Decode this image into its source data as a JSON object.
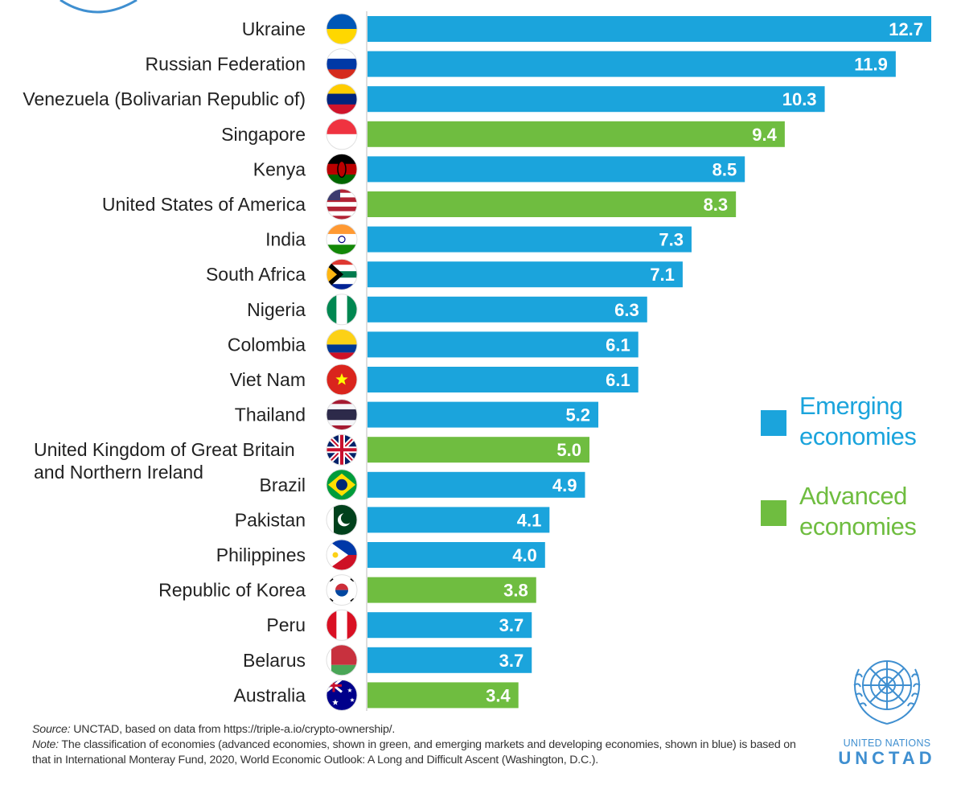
{
  "colors": {
    "emerging": "#1ba4dc",
    "advanced": "#6fbd40",
    "label_text": "#222222",
    "value_text": "#ffffff",
    "un_blue": "#3f8fd0"
  },
  "legend": [
    {
      "label": "Emerging economies",
      "group": "emerging"
    },
    {
      "label": "Advanced economies",
      "group": "advanced"
    }
  ],
  "chart_data": {
    "type": "bar",
    "orientation": "horizontal",
    "unit": "percent of population owning digital currency",
    "xlim": [
      0,
      13
    ],
    "grid": false,
    "legend_position": "right",
    "categories": [
      "Ukraine",
      "Russian Federation",
      "Venezuela (Bolivarian Republic of)",
      "Singapore",
      "Kenya",
      "United States of America",
      "India",
      "South Africa",
      "Nigeria",
      "Colombia",
      "Viet Nam",
      "Thailand",
      "United Kingdom of Great Britain and Northern Ireland",
      "Brazil",
      "Pakistan",
      "Philippines",
      "Republic of Korea",
      "Peru",
      "Belarus",
      "Australia"
    ],
    "labels": [
      [
        "Ukraine"
      ],
      [
        "Russian Federation"
      ],
      [
        "Venezuela (Bolivarian Republic of)"
      ],
      [
        "Singapore"
      ],
      [
        "Kenya"
      ],
      [
        "United States of America"
      ],
      [
        "India"
      ],
      [
        "South Africa"
      ],
      [
        "Nigeria"
      ],
      [
        "Colombia"
      ],
      [
        "Viet Nam"
      ],
      [
        "Thailand"
      ],
      [
        "United Kingdom of Great Britain",
        "and Northern Ireland"
      ],
      [
        "Brazil"
      ],
      [
        "Pakistan"
      ],
      [
        "Philippines"
      ],
      [
        "Republic of Korea"
      ],
      [
        "Peru"
      ],
      [
        "Belarus"
      ],
      [
        "Australia"
      ]
    ],
    "values": [
      12.7,
      11.9,
      10.3,
      9.4,
      8.5,
      8.3,
      7.3,
      7.1,
      6.3,
      6.1,
      6.1,
      5.2,
      5.0,
      4.9,
      4.1,
      4.0,
      3.8,
      3.7,
      3.7,
      3.4
    ],
    "value_labels": [
      "12.7",
      "11.9",
      "10.3",
      "9.4",
      "8.5",
      "8.3",
      "7.3",
      "7.1",
      "6.3",
      "6.1",
      "6.1",
      "5.2",
      "5.0",
      "4.9",
      "4.1",
      "4.0",
      "3.8",
      "3.7",
      "3.7",
      "3.4"
    ],
    "groups": [
      "emerging",
      "emerging",
      "emerging",
      "advanced",
      "emerging",
      "advanced",
      "emerging",
      "emerging",
      "emerging",
      "emerging",
      "emerging",
      "emerging",
      "advanced",
      "emerging",
      "emerging",
      "emerging",
      "advanced",
      "emerging",
      "emerging",
      "advanced"
    ],
    "flags": [
      "ukraine-flag",
      "russia-flag",
      "venezuela-flag",
      "singapore-flag",
      "kenya-flag",
      "usa-flag",
      "india-flag",
      "south-africa-flag",
      "nigeria-flag",
      "colombia-flag",
      "vietnam-flag",
      "thailand-flag",
      "uk-flag",
      "brazil-flag",
      "pakistan-flag",
      "philippines-flag",
      "korea-flag",
      "peru-flag",
      "belarus-flag",
      "australia-flag"
    ]
  },
  "footnotes": {
    "source_lead": "Source:",
    "source_text": " UNCTAD, based on data from https://triple-a.io/crypto-ownership/.",
    "note_lead": "Note:",
    "note_text": " The classification of economies (advanced economies, shown in green, and emerging markets and developing economies, shown in blue) is based on that in International Monteray Fund, 2020, World Economic Outlook: A Long and Difficult Ascent (Washington, D.C.)."
  },
  "logo": {
    "un_name": "UNITED NATIONS",
    "org": "UNCTAD"
  }
}
